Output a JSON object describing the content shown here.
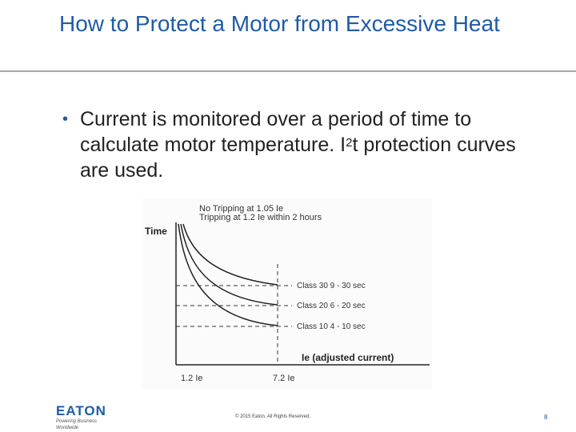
{
  "slide": {
    "title": "How to Protect a Motor from Excessive Heat",
    "bullet_text": "Current is monitored over a period of time to calculate motor temperature. I",
    "bullet_sup": "2",
    "bullet_text_after": "t protection curves are used."
  },
  "figure": {
    "note_line1": "No Tripping at 1.05 Ie",
    "note_line2": "Tripping at 1.2 Ie within 2 hours",
    "y_label": "Time",
    "x_label": "Ie (adjusted current)",
    "x_tick_left": "1.2 Ie",
    "x_tick_right": "7.2 Ie",
    "class30": "Class 30 9 - 30 sec",
    "class20": "Class 20 6 - 20 sec",
    "class10": "Class 10 4 - 10 sec"
  },
  "footer": {
    "logo_text": "EATON",
    "logo_tagline": "Powering Business Worldwide",
    "copyright": "© 2015 Eaton. All Rights Reserved.",
    "page_number": "8"
  }
}
